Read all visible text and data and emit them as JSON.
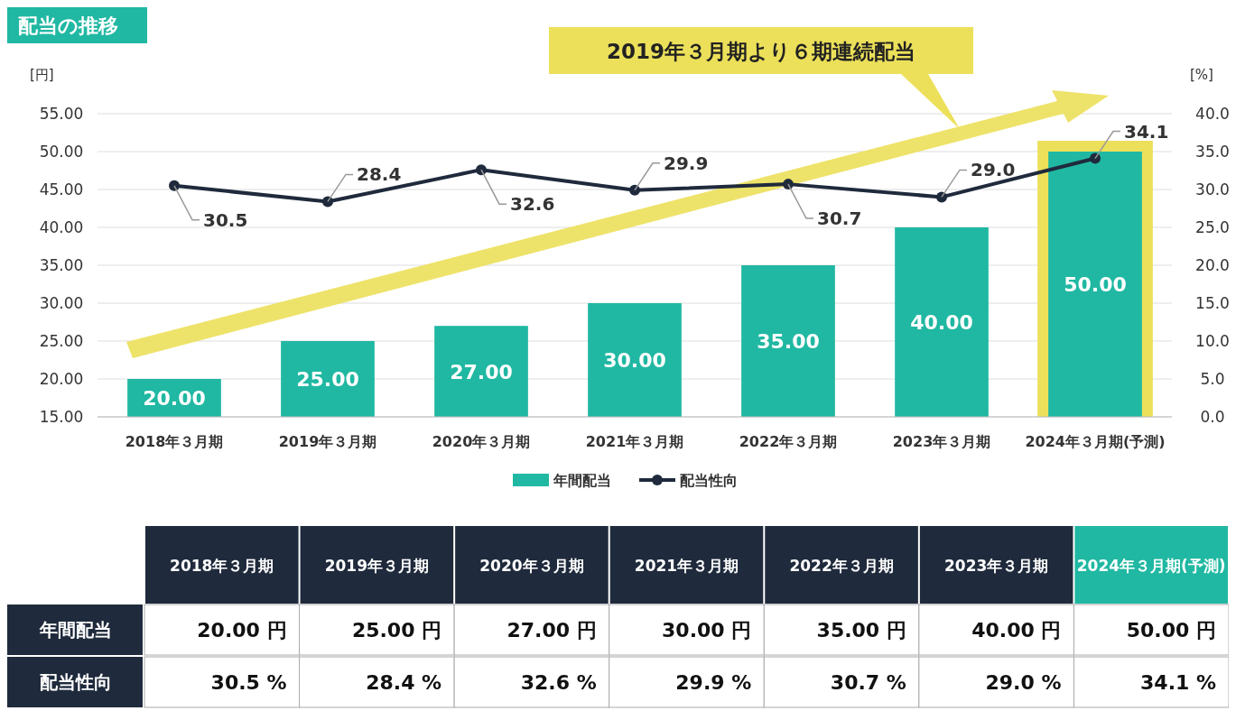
{
  "chart_data": {
    "type": "bar",
    "title": "配当の推移",
    "ylabel": "[円]",
    "y2label": "[%]",
    "categories": [
      "2018年３月期",
      "2019年３月期",
      "2020年３月期",
      "2021年３月期",
      "2022年３月期",
      "2023年３月期",
      "2024年３月期(予測)"
    ],
    "series": [
      {
        "name": "年間配当",
        "color": "#20b8a2",
        "values": [
          20,
          25,
          27,
          30,
          35,
          40,
          50
        ],
        "value_labels": [
          "20.00",
          "25.00",
          "27.00",
          "30.00",
          "35.00",
          "40.00",
          "50.00"
        ]
      },
      {
        "name": "配当性向",
        "type": "line",
        "axis": "y2",
        "color": "#1f2a3c",
        "marker": "circle",
        "values": [
          30.5,
          28.4,
          32.6,
          29.9,
          30.7,
          29.0,
          34.1
        ],
        "value_labels": [
          "30.5",
          "28.4",
          "32.6",
          "29.9",
          "30.7",
          "29.0",
          "34.1"
        ]
      }
    ],
    "ylim": [
      15,
      55
    ],
    "yticks": [
      {
        "value": 15,
        "label": "15.00"
      },
      {
        "value": 20,
        "label": "20.00"
      },
      {
        "value": 25,
        "label": "25.00"
      },
      {
        "value": 30,
        "label": "30.00"
      },
      {
        "value": 35,
        "label": "35.00"
      },
      {
        "value": 40,
        "label": "40.00"
      },
      {
        "value": 45,
        "label": "45.00"
      },
      {
        "value": 50,
        "label": "50.00"
      },
      {
        "value": 55,
        "label": "55.00"
      }
    ],
    "y2lim": [
      0,
      40
    ],
    "y2ticks": [
      {
        "value": 0,
        "label": "0.0"
      },
      {
        "value": 5,
        "label": "5.0"
      },
      {
        "value": 10,
        "label": "10.0"
      },
      {
        "value": 15,
        "label": "15.0"
      },
      {
        "value": 20,
        "label": "20.0"
      },
      {
        "value": 25,
        "label": "25.0"
      },
      {
        "value": 30,
        "label": "30.0"
      },
      {
        "value": 35,
        "label": "35.0"
      },
      {
        "value": 40,
        "label": "40.0"
      }
    ],
    "grid": "y",
    "legend": "bottom",
    "data_labels": true,
    "bands": [
      {
        "axis": "x",
        "from": "2024年３月期(予測)",
        "to": "2024年３月期(予測)",
        "color": "#ece05a"
      }
    ],
    "annotations": [
      "2019年３月期より６期連続配当",
      "20.00 円",
      "25.00 円",
      "27.00 円",
      "30.00 円",
      "35.00 円",
      "40.00 円",
      "50.00 円",
      "30.5 %",
      "28.4 %",
      "32.6 %",
      "29.9 %",
      "30.7 %",
      "29.0 %",
      "34.1 %"
    ]
  }
}
